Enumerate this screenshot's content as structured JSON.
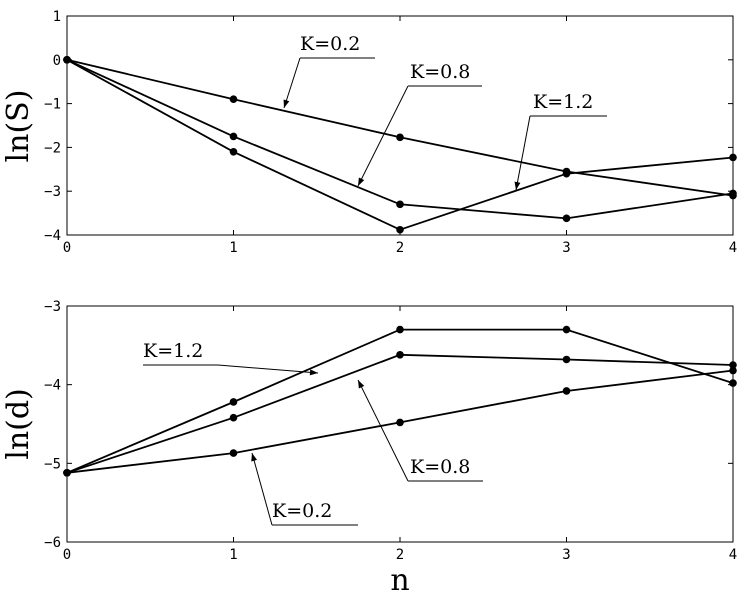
{
  "chart_data": [
    {
      "type": "line",
      "ylabel": "ln(S)",
      "xlabel": "",
      "xlim": [
        0,
        4
      ],
      "ylim": [
        -4,
        1
      ],
      "x": [
        0,
        1,
        2,
        3,
        4
      ],
      "xticks": [
        "0",
        "1",
        "2",
        "3",
        "4"
      ],
      "yticks": [
        "1",
        "0",
        "−1",
        "−2",
        "−3",
        "−4"
      ],
      "grid": false,
      "series": [
        {
          "name": "K=0.2",
          "values": [
            0,
            -0.9,
            -1.77,
            -2.55,
            -3.1
          ]
        },
        {
          "name": "K=0.8",
          "values": [
            0,
            -1.75,
            -3.3,
            -3.62,
            -3.05
          ]
        },
        {
          "name": "K=1.2",
          "values": [
            0,
            -2.1,
            -3.88,
            -2.6,
            -2.23
          ]
        }
      ]
    },
    {
      "type": "line",
      "ylabel": "ln(d)",
      "xlabel": "n",
      "xlim": [
        0,
        4
      ],
      "ylim": [
        -6,
        -3
      ],
      "x": [
        0,
        1,
        2,
        3,
        4
      ],
      "xticks": [
        "0",
        "1",
        "2",
        "3",
        "4"
      ],
      "yticks": [
        "−3",
        "−4",
        "−5",
        "−6"
      ],
      "grid": false,
      "series": [
        {
          "name": "K=1.2",
          "values": [
            -5.12,
            -4.22,
            -3.3,
            -3.3,
            -3.98
          ]
        },
        {
          "name": "K=0.8",
          "values": [
            -5.12,
            -4.42,
            -3.62,
            -3.68,
            -3.75
          ]
        },
        {
          "name": "K=0.2",
          "values": [
            -5.12,
            -4.87,
            -4.48,
            -4.08,
            -3.82
          ]
        }
      ]
    }
  ]
}
